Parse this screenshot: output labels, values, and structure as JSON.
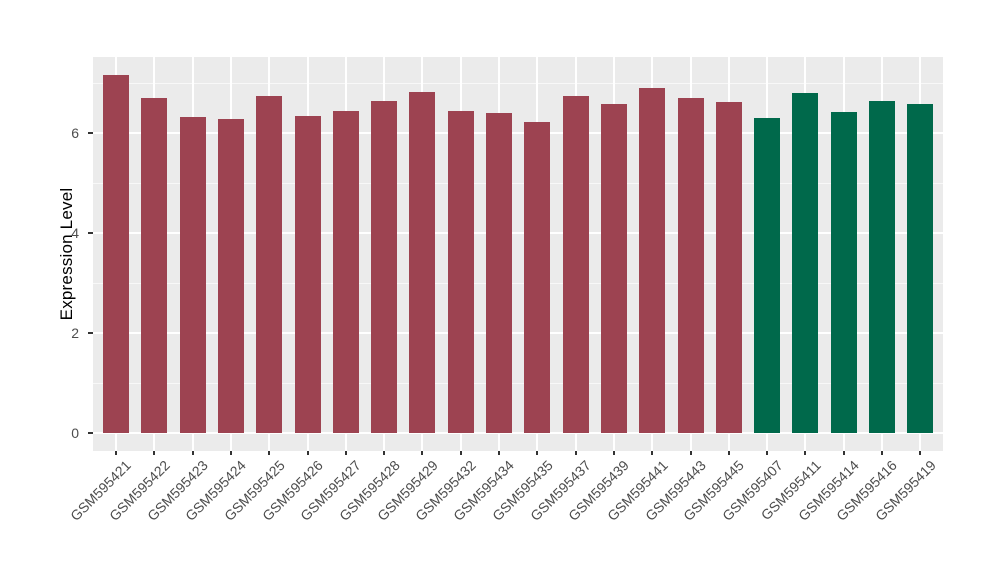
{
  "figure": {
    "kind": "static-plot",
    "background": "#FFFFFF"
  },
  "chart_data": {
    "type": "bar",
    "title": "",
    "xlabel": "",
    "ylabel": "Expression Level",
    "legend_position": "none",
    "grid": true,
    "panel_background": "#EBEBEB",
    "gridline_color": "#FFFFFF",
    "axis_text_color": "#4D4D4D",
    "axis_title_color": "#000000",
    "tick_mark_color": "#333333",
    "yticks": [
      0,
      2,
      4,
      6
    ],
    "minor_yticks": [
      1,
      3,
      5,
      7
    ],
    "ylim": [
      -0.36,
      7.52
    ],
    "x_label_angle_deg": 45,
    "palette": {
      "maroon": "#9D4351",
      "green": "#00694B"
    },
    "categories": [
      "GSM595421",
      "GSM595422",
      "GSM595423",
      "GSM595424",
      "GSM595425",
      "GSM595426",
      "GSM595427",
      "GSM595428",
      "GSM595429",
      "GSM595432",
      "GSM595434",
      "GSM595435",
      "GSM595437",
      "GSM595439",
      "GSM595441",
      "GSM595443",
      "GSM595445",
      "GSM595407",
      "GSM595411",
      "GSM595414",
      "GSM595416",
      "GSM595419"
    ],
    "values": [
      7.16,
      6.7,
      6.32,
      6.28,
      6.75,
      6.34,
      6.45,
      6.65,
      6.83,
      6.44,
      6.4,
      6.22,
      6.74,
      6.58,
      6.9,
      6.7,
      6.62,
      6.31,
      6.8,
      6.42,
      6.64,
      6.58
    ],
    "bar_groups": [
      "maroon",
      "maroon",
      "maroon",
      "maroon",
      "maroon",
      "maroon",
      "maroon",
      "maroon",
      "maroon",
      "maroon",
      "maroon",
      "maroon",
      "maroon",
      "maroon",
      "maroon",
      "maroon",
      "maroon",
      "green",
      "green",
      "green",
      "green",
      "green"
    ]
  }
}
